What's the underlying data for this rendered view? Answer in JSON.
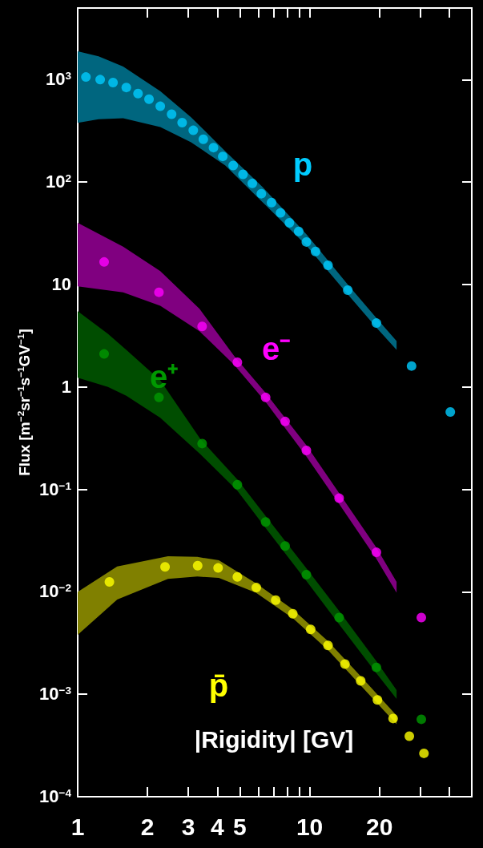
{
  "chart_data": {
    "type": "scatter",
    "xlabel": "|Rigidity| [GV]",
    "ylabel": "Flux [m$^{−2}$sr$^{−1}$s$^{−1}$GV$^{−1}$]",
    "log": "xy",
    "xlim": [
      1,
      50
    ],
    "ylim": [
      0.0001,
      5000
    ],
    "xticks": [
      1,
      2,
      3,
      4,
      5,
      {
        "value": 6,
        "label": null
      },
      {
        "value": 7,
        "label": null
      },
      {
        "value": 8,
        "label": null
      },
      {
        "value": 9,
        "label": null
      },
      10,
      20,
      {
        "value": 30,
        "label": null
      },
      {
        "value": 40,
        "label": null
      }
    ],
    "yticks": [
      {
        "value": 0.0001,
        "label": "10$^{−4}$"
      },
      {
        "value": 0.001,
        "label": "10$^{−3}$"
      },
      {
        "value": 0.01,
        "label": "10$^{−2}$"
      },
      {
        "value": 0.1,
        "label": "10$^{−1}$"
      },
      1,
      10,
      {
        "value": 100,
        "label": "10$^{2}$"
      },
      {
        "value": 1000,
        "label": "10$^{3}$"
      }
    ],
    "grid": false,
    "legend": false,
    "marker": "circle",
    "series": [
      {
        "type": "line",
        "color": "#00667f",
        "x": [
          1,
          1.23,
          1.57,
          2.27,
          3.08,
          4.33,
          6.25,
          9.68,
          14.6,
          19.4,
          23.7
        ],
        "values": [
          null,
          null,
          null,
          null,
          null,
          null,
          null,
          null,
          null,
          null,
          null
        ],
        "lower": [
          378,
          410,
          420,
          345,
          245,
          145,
          64,
          24,
          8.0,
          3.8,
          2.3
        ],
        "upper": [
          1890,
          1690,
          1340,
          771,
          430,
          200,
          90,
          31,
          10,
          4.7,
          2.8
        ]
      },
      {
        "type": "line",
        "color": "#800080",
        "x": [
          1,
          1.57,
          2.27,
          3.35,
          4.73,
          6.44,
          9.68,
          13.4,
          19.4,
          23.7
        ],
        "values": [
          null,
          null,
          null,
          null,
          null,
          null,
          null,
          null,
          null,
          null
        ],
        "lower": [
          9.6,
          8.4,
          6.2,
          3.5,
          1.64,
          0.72,
          0.21,
          0.072,
          0.021,
          0.0098
        ],
        "upper": [
          40,
          23.4,
          13.5,
          5.8,
          2.0,
          0.88,
          0.27,
          0.092,
          0.027,
          0.0125
        ]
      },
      {
        "type": "line",
        "color": "#004d00",
        "x": [
          1,
          1.35,
          1.62,
          2.27,
          3.38,
          4.88,
          6.46,
          9.68,
          13.4,
          19.4,
          23.7
        ],
        "values": [
          null,
          null,
          null,
          null,
          null,
          null,
          null,
          null,
          null,
          null,
          null
        ],
        "lower": [
          1.23,
          1.0,
          0.82,
          0.5,
          0.22,
          0.097,
          0.042,
          0.0128,
          0.0048,
          0.0016,
          0.0009
        ],
        "upper": [
          5.5,
          3.3,
          2.3,
          1.16,
          0.31,
          0.125,
          0.055,
          0.017,
          0.0065,
          0.0021,
          0.0011
        ]
      },
      {
        "type": "line",
        "color": "#808000",
        "x": [
          1,
          1.48,
          2.45,
          3.28,
          4.06,
          5.87,
          8.48,
          12.0,
          16.6,
          23.7
        ],
        "values": [
          null,
          null,
          null,
          null,
          null,
          null,
          null,
          null,
          null,
          null
        ],
        "lower": [
          0.0038,
          0.0084,
          0.0134,
          0.0141,
          0.0137,
          0.0098,
          0.0055,
          0.0027,
          0.00122,
          0.00051
        ],
        "upper": [
          0.01,
          0.0177,
          0.0222,
          0.0219,
          0.0203,
          0.0121,
          0.0067,
          0.0033,
          0.0015,
          0.00062
        ]
      },
      {
        "name": "p",
        "color": "#00ccff",
        "x": [
          1.085,
          1.25,
          1.42,
          1.62,
          1.82,
          2.03,
          2.27,
          2.54,
          2.82,
          3.15,
          3.48,
          3.85,
          4.22,
          4.68,
          5.16,
          5.66,
          6.19,
          6.85,
          7.49,
          8.18,
          8.97,
          9.68,
          10.6,
          12.0,
          14.6,
          19.4,
          27.5,
          40.4
        ],
        "values": [
          1060,
          1000,
          936,
          838,
          730,
          644,
          549,
          459,
          380,
          320,
          262,
          217,
          178,
          145,
          119,
          97,
          77,
          63,
          50,
          40,
          33,
          26,
          21,
          15.4,
          8.8,
          4.2,
          1.6,
          0.57
        ]
      },
      {
        "name": "e⁻",
        "color": "#ff00ff",
        "x": [
          1.3,
          2.24,
          3.44,
          4.88,
          6.46,
          7.84,
          9.68,
          13.4,
          19.4,
          30.3
        ],
        "values": [
          16.6,
          8.4,
          3.9,
          1.74,
          0.79,
          0.46,
          0.24,
          0.082,
          0.0243,
          0.0056
        ]
      },
      {
        "name": "e⁺",
        "color": "#009900",
        "x": [
          1.3,
          2.24,
          3.44,
          4.88,
          6.46,
          7.84,
          9.68,
          13.4,
          19.4,
          30.3
        ],
        "values": [
          2.1,
          0.79,
          0.28,
          0.111,
          0.048,
          0.028,
          0.0147,
          0.0056,
          0.00183,
          0.00057
        ]
      },
      {
        "name": "p̄",
        "color": "#ffff00",
        "x": [
          1.37,
          2.38,
          3.29,
          4.03,
          4.88,
          5.89,
          7.14,
          8.46,
          10.1,
          12.0,
          14.2,
          16.6,
          19.6,
          22.9,
          26.9,
          31.1
        ],
        "values": [
          0.0125,
          0.0175,
          0.018,
          0.0171,
          0.014,
          0.011,
          0.0083,
          0.0061,
          0.0043,
          0.003,
          0.00197,
          0.00135,
          0.00088,
          0.00058,
          0.00039,
          0.000265
        ]
      }
    ]
  }
}
